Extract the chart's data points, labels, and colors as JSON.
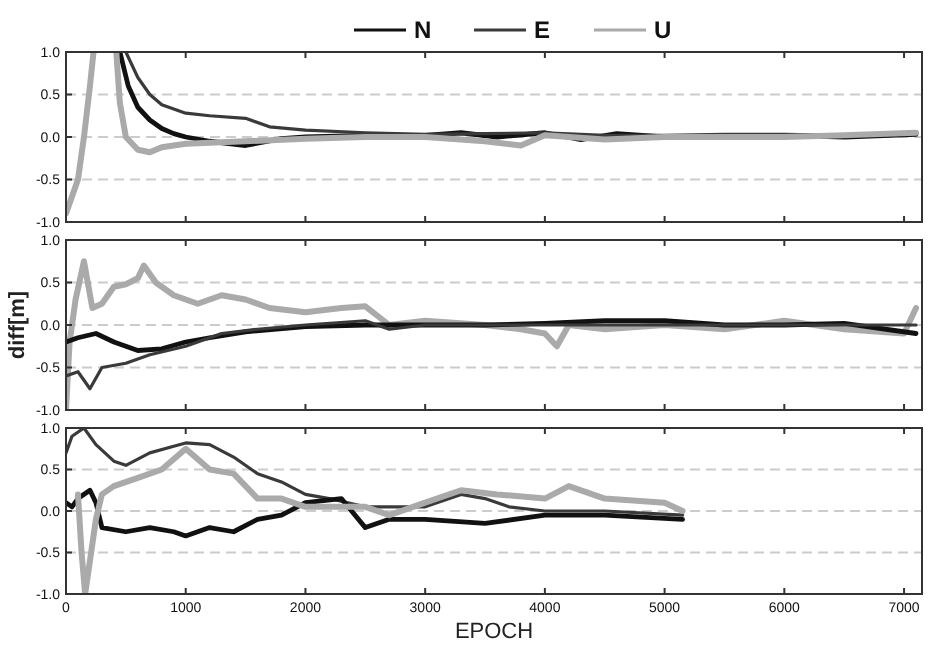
{
  "chart_data": [
    {
      "type": "line",
      "legend": "top",
      "tick_labels": "y",
      "xlim": [
        0,
        7150
      ],
      "xticks": [
        0,
        1000,
        2000,
        3000,
        4000,
        5000,
        6000,
        7000
      ],
      "ylim": [
        -1,
        1
      ],
      "yticks": [
        {
          "value": -1,
          "label": "-1.0"
        },
        {
          "value": -0.5,
          "label": "-0.5"
        },
        {
          "value": 0,
          "label": "0.0"
        },
        {
          "value": 0.5,
          "label": "0.5"
        },
        {
          "value": 1,
          "label": "1.0"
        }
      ],
      "grid": "y",
      "series": [
        {
          "name": "N",
          "color": "#111111",
          "x": [
            450,
            520,
            600,
            700,
            800,
            900,
            1000,
            1200,
            1500,
            1800,
            2000,
            2500,
            3000,
            3300,
            3600,
            4000,
            4300,
            4600,
            5000,
            5500,
            6000,
            6500,
            7100
          ],
          "values": [
            1.0,
            0.6,
            0.35,
            0.2,
            0.1,
            0.04,
            0.0,
            -0.05,
            -0.1,
            -0.02,
            0.0,
            0.02,
            0.02,
            0.05,
            0.0,
            0.05,
            -0.03,
            0.04,
            0.0,
            0.01,
            0.02,
            0.0,
            0.03
          ]
        },
        {
          "name": "E",
          "color": "#3a3a3a",
          "x": [
            500,
            600,
            700,
            800,
            1000,
            1200,
            1500,
            1700,
            2000,
            2500,
            3000,
            3500,
            4000,
            4500,
            5000,
            5500,
            6000,
            6500,
            7100
          ],
          "values": [
            1.0,
            0.7,
            0.5,
            0.38,
            0.28,
            0.25,
            0.22,
            0.12,
            0.08,
            0.05,
            0.03,
            0.04,
            0.05,
            0.02,
            0.02,
            0.03,
            0.03,
            0.02,
            0.04
          ]
        },
        {
          "name": "U",
          "color": "#aaaaaa",
          "x": [
            0,
            100,
            150,
            200,
            230,
            300,
            420,
            450,
            500,
            600,
            700,
            800,
            1000,
            1500,
            2000,
            2500,
            3000,
            3500,
            3800,
            4000,
            4500,
            5000,
            5500,
            6000,
            6500,
            7100
          ],
          "values": [
            -0.9,
            -0.5,
            0.0,
            0.6,
            1.0,
            null,
            1.0,
            0.4,
            0.0,
            -0.15,
            -0.18,
            -0.12,
            -0.08,
            -0.05,
            -0.02,
            0.0,
            0.0,
            -0.05,
            -0.1,
            0.02,
            -0.03,
            0.0,
            0.0,
            0.0,
            0.02,
            0.05
          ]
        }
      ]
    },
    {
      "type": "line",
      "tick_labels": "y",
      "ylabel": "diff[m]",
      "xlim": [
        0,
        7150
      ],
      "xticks": [
        0,
        1000,
        2000,
        3000,
        4000,
        5000,
        6000,
        7000
      ],
      "ylim": [
        -1,
        1
      ],
      "yticks": [
        {
          "value": -1,
          "label": "-1.0"
        },
        {
          "value": -0.5,
          "label": "-0.5"
        },
        {
          "value": 0,
          "label": "0.0"
        },
        {
          "value": 0.5,
          "label": "0.5"
        },
        {
          "value": 1,
          "label": "1.0"
        }
      ],
      "grid": "y",
      "series": [
        {
          "color": "#aaaaaa",
          "x": [
            0,
            30,
            80,
            150,
            220,
            300,
            400,
            500,
            600,
            650,
            750,
            900,
            1100,
            1300,
            1500,
            1700,
            2000,
            2300,
            2500,
            2700,
            3000,
            3500,
            3800,
            4000,
            4100,
            4200,
            4500,
            5000,
            5500,
            6000,
            6500,
            7000,
            7100
          ],
          "values": [
            -1.0,
            -0.2,
            0.3,
            0.75,
            0.2,
            0.25,
            0.45,
            0.48,
            0.55,
            0.7,
            0.5,
            0.35,
            0.25,
            0.35,
            0.3,
            0.2,
            0.15,
            0.2,
            0.22,
            0.0,
            0.05,
            0.0,
            -0.05,
            -0.1,
            -0.25,
            0.0,
            -0.05,
            0.0,
            -0.05,
            0.05,
            -0.05,
            -0.1,
            0.2
          ]
        },
        {
          "color": "#111111",
          "x": [
            0,
            100,
            250,
            400,
            600,
            800,
            1000,
            1200,
            1500,
            2000,
            2500,
            3000,
            3500,
            4000,
            4500,
            5000,
            5500,
            6000,
            6500,
            7100
          ],
          "values": [
            -0.2,
            -0.15,
            -0.1,
            -0.2,
            -0.3,
            -0.28,
            -0.2,
            -0.15,
            -0.08,
            -0.02,
            0.0,
            0.0,
            0.0,
            0.02,
            0.05,
            0.05,
            0.0,
            0.0,
            0.02,
            -0.1
          ]
        },
        {
          "color": "#3a3a3a",
          "x": [
            0,
            100,
            200,
            300,
            500,
            700,
            1000,
            1300,
            1600,
            2000,
            2500,
            2700,
            3000,
            4000,
            5000,
            6000,
            7100
          ],
          "values": [
            -0.6,
            -0.55,
            -0.75,
            -0.5,
            -0.45,
            -0.35,
            -0.25,
            -0.1,
            -0.05,
            0.0,
            0.05,
            -0.05,
            0.0,
            0.0,
            0.0,
            0.0,
            0.0
          ]
        }
      ]
    },
    {
      "type": "line",
      "xlabel": "EPOCH",
      "xlim": [
        0,
        7150
      ],
      "xticks": [
        0,
        1000,
        2000,
        3000,
        4000,
        5000,
        6000,
        7000
      ],
      "ylim": [
        -1,
        1
      ],
      "yticks": [
        {
          "value": -1,
          "label": "-1.0"
        },
        {
          "value": -0.5,
          "label": "-0.5"
        },
        {
          "value": 0,
          "label": "0.0"
        },
        {
          "value": 0.5,
          "label": "0.5"
        },
        {
          "value": 1,
          "label": "1.0"
        }
      ],
      "grid": "y",
      "series": [
        {
          "color": "#3a3a3a",
          "x": [
            0,
            50,
            150,
            250,
            400,
            500,
            700,
            900,
            1000,
            1200,
            1400,
            1600,
            1800,
            2000,
            2200,
            2500,
            3000,
            3300,
            3500,
            3700,
            4000,
            4500,
            5150
          ],
          "values": [
            0.7,
            0.9,
            1.0,
            0.8,
            0.6,
            0.55,
            0.7,
            0.78,
            0.82,
            0.8,
            0.65,
            0.45,
            0.35,
            0.2,
            0.15,
            0.05,
            0.05,
            0.2,
            0.15,
            0.05,
            0.0,
            0.0,
            -0.05
          ]
        },
        {
          "color": "#111111",
          "x": [
            0,
            50,
            100,
            200,
            250,
            300,
            500,
            700,
            900,
            1000,
            1200,
            1400,
            1600,
            1800,
            2000,
            2300,
            2500,
            2700,
            3000,
            3500,
            4000,
            4500,
            5150
          ],
          "values": [
            0.1,
            0.05,
            0.15,
            0.25,
            0.1,
            -0.2,
            -0.25,
            -0.2,
            -0.25,
            -0.3,
            -0.2,
            -0.25,
            -0.1,
            -0.05,
            0.1,
            0.15,
            -0.2,
            -0.1,
            -0.1,
            -0.15,
            -0.05,
            -0.05,
            -0.1
          ]
        },
        {
          "color": "#aaaaaa",
          "x": [
            100,
            130,
            160,
            200,
            250,
            300,
            400,
            600,
            800,
            1000,
            1200,
            1400,
            1600,
            1800,
            2000,
            2500,
            2700,
            3000,
            3300,
            3600,
            4000,
            4200,
            4500,
            5000,
            5150
          ],
          "values": [
            0.2,
            -0.5,
            -1.0,
            -0.6,
            -0.1,
            0.2,
            0.3,
            0.4,
            0.5,
            0.75,
            0.5,
            0.45,
            0.15,
            0.15,
            0.05,
            0.05,
            -0.05,
            0.1,
            0.25,
            0.2,
            0.15,
            0.3,
            0.15,
            0.1,
            0.0
          ]
        }
      ]
    }
  ]
}
